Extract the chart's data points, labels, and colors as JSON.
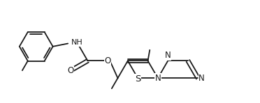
{
  "bg_color": "#ffffff",
  "line_color": "#1a1a1a",
  "line_width": 1.3,
  "font_size_atom": 8.0,
  "fig_width": 3.72,
  "fig_height": 1.48,
  "dpi": 100,
  "xlim": [
    0,
    9.3
  ],
  "ylim": [
    0,
    3.6
  ]
}
